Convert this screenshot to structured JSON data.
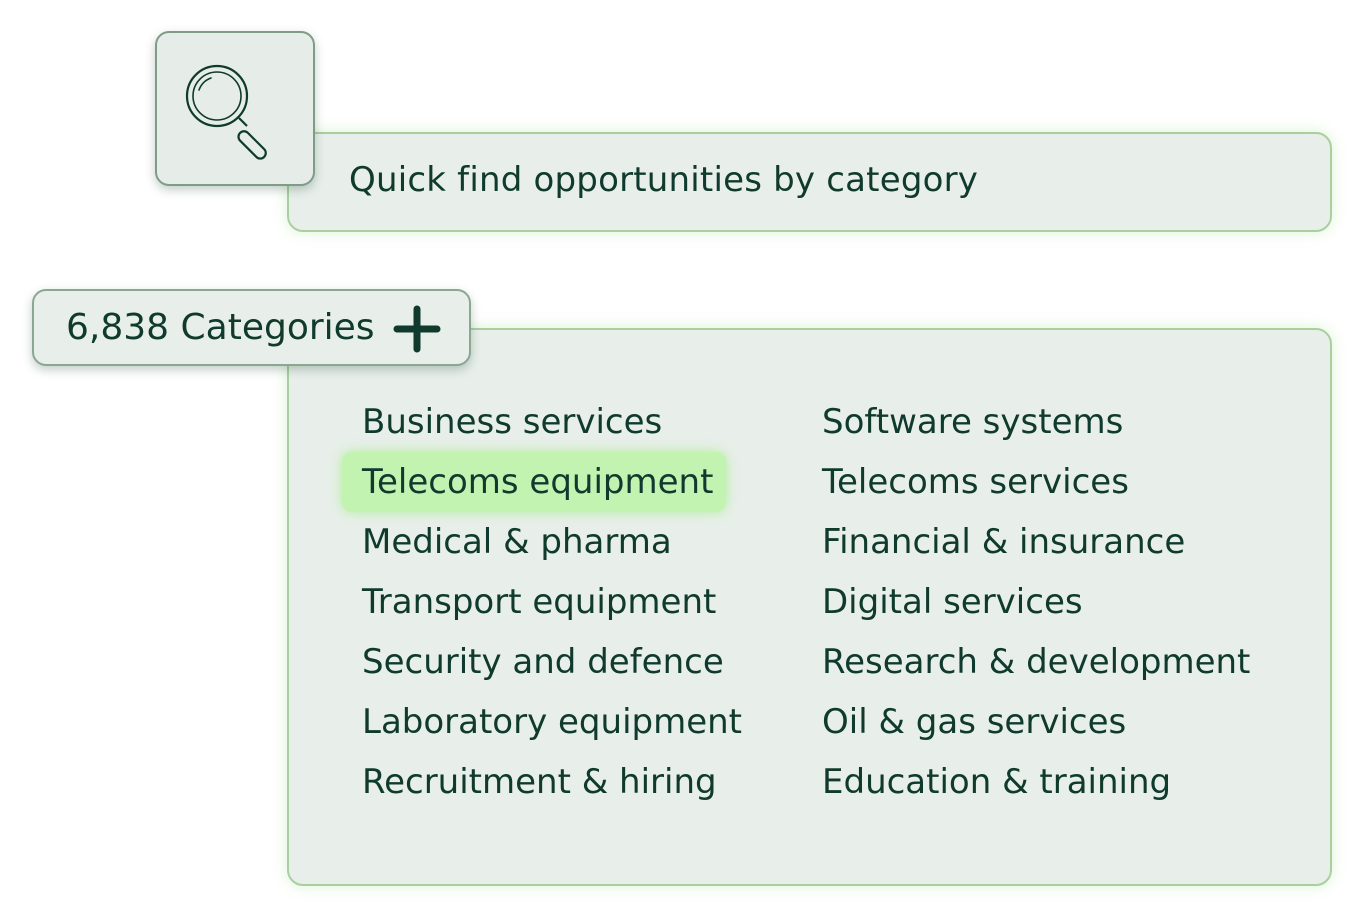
{
  "search": {
    "prompt": "Quick find opportunities by category"
  },
  "categories": {
    "count_label": "6,838 Categories",
    "left_column": [
      "Business services",
      "Telecoms equipment",
      "Medical & pharma",
      "Transport equipment",
      "Security and defence",
      "Laboratory equipment",
      "Recruitment & hiring"
    ],
    "right_column": [
      "Software systems",
      "Telecoms services",
      "Financial & insurance",
      "Digital services",
      "Research & development",
      "Oil & gas services",
      "Education & training"
    ],
    "highlighted": "Telecoms equipment"
  },
  "icons": {
    "search": "magnifier-icon",
    "expand": "plus-icon"
  },
  "colors": {
    "text": "#0f3a2d",
    "panel": "#e8efea",
    "border": "#a9cf9f",
    "highlight": "#c3f3b1"
  }
}
